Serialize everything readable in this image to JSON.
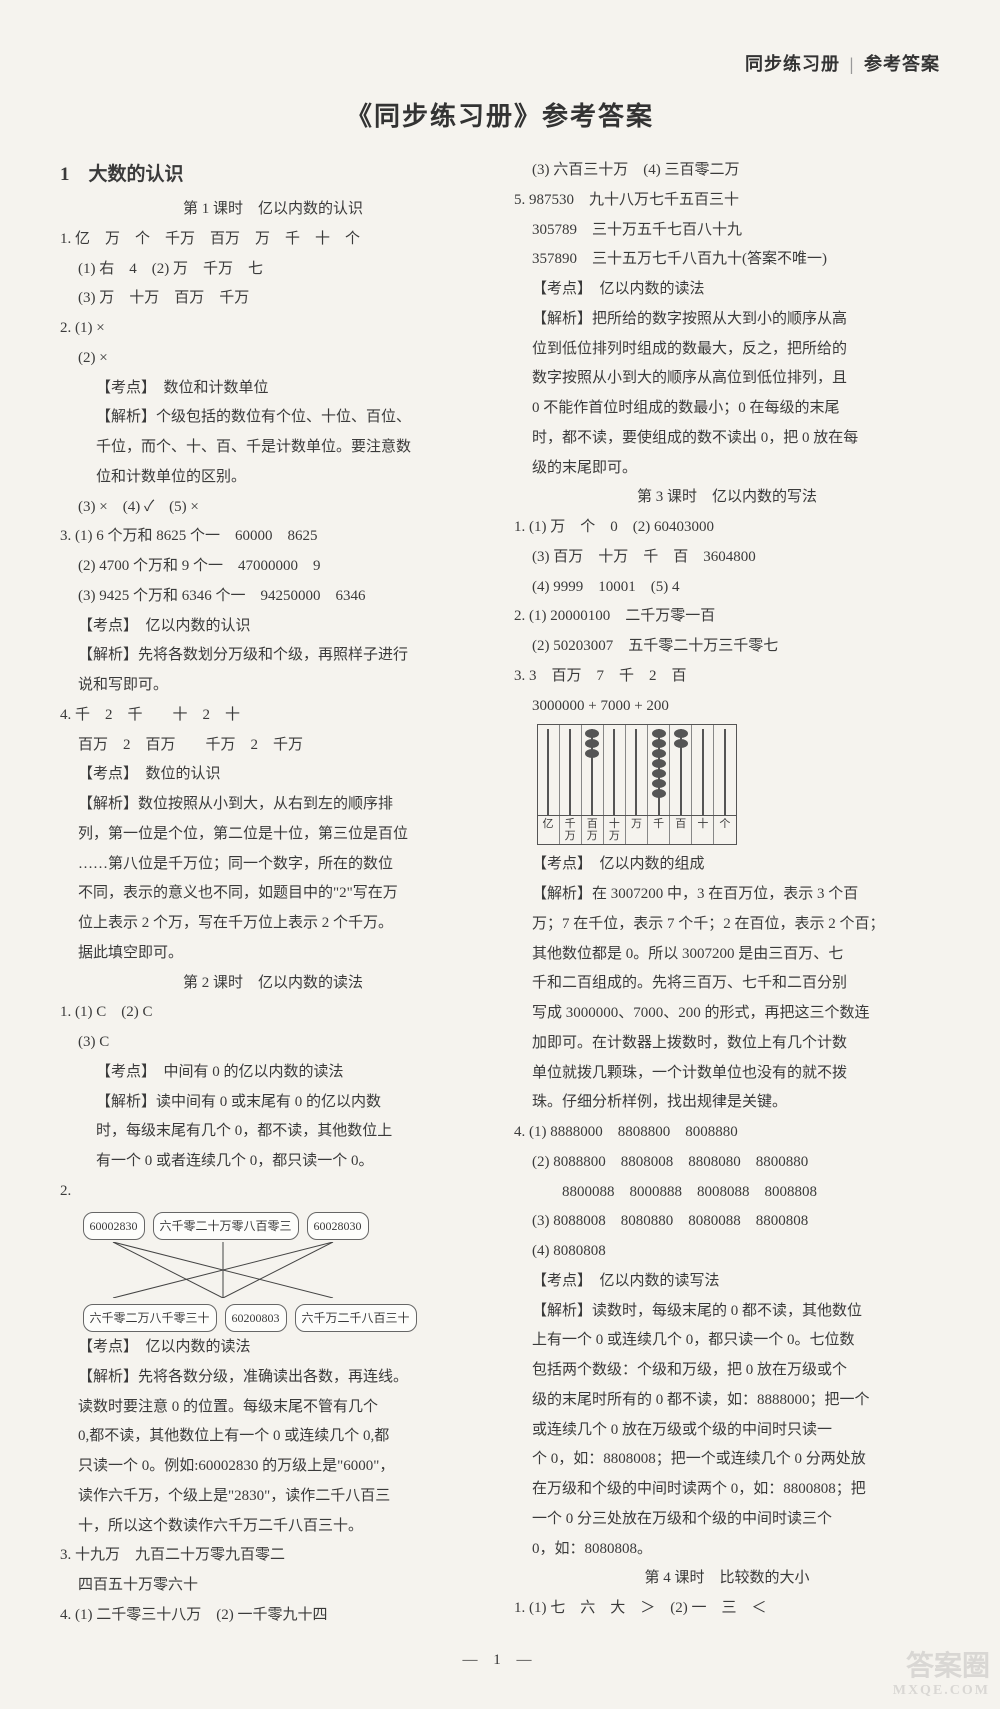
{
  "header": {
    "right_a": "同步练习册",
    "right_sep": "|",
    "right_b": "参考答案",
    "main_title": "《同步练习册》参考答案"
  },
  "left": {
    "chapter_num": "1",
    "chapter_title": "大数的认识",
    "lesson1": "第 1 课时　亿以内数的认识",
    "l1_1": "1. 亿　万　个　千万　百万　万　千　十　个",
    "l1_1a": "(1) 右　4　(2) 万　千万　七",
    "l1_1b": "(3) 万　十万　百万　千万",
    "l1_2": "2. (1) ×",
    "l1_2a": "(2) ×",
    "l1_kao1": "【考点】　数位和计数单位",
    "l1_jie1a": "【解析】个级包括的数位有个位、十位、百位、",
    "l1_jie1b": "千位，而个、十、百、千是计数单位。要注意数",
    "l1_jie1c": "位和计数单位的区别。",
    "l1_2b": "(3) ×　(4) ✓　(5) ×",
    "l1_3a": "3. (1) 6 个万和 8625 个一　60000　8625",
    "l1_3b": "(2) 4700 个万和 9 个一　47000000　9",
    "l1_3c": "(3) 9425 个万和 6346 个一　94250000　6346",
    "l1_kao2": "【考点】　亿以内数的认识",
    "l1_jie2a": "【解析】先将各数划分万级和个级，再照样子进行",
    "l1_jie2b": "说和写即可。",
    "l1_4a": "4. 千　2　千　　十　2　十",
    "l1_4b": "百万　2　百万　　千万　2　千万",
    "l1_kao3": "【考点】　数位的认识",
    "l1_jie3a": "【解析】数位按照从小到大，从右到左的顺序排",
    "l1_jie3b": "列，第一位是个位，第二位是十位，第三位是百位",
    "l1_jie3c": "……第八位是千万位；同一个数字，所在的数位",
    "l1_jie3d": "不同，表示的意义也不同，如题目中的\"2\"写在万",
    "l1_jie3e": "位上表示 2 个万，写在千万位上表示 2 个千万。",
    "l1_jie3f": "据此填空即可。",
    "lesson2": "第 2 课时　亿以内数的读法",
    "l2_1": "1. (1) C　(2) C",
    "l2_1a": "(3) C",
    "l2_kao1": "【考点】　中间有 0 的亿以内数的读法",
    "l2_jie1a": "【解析】读中间有 0 或末尾有 0 的亿以内数",
    "l2_jie1b": "时，每级末尾有几个 0，都不读，其他数位上",
    "l2_jie1c": "有一个 0 或者连续几个 0，都只读一个 0。",
    "l2_2": "2.",
    "box_top": [
      "60002830",
      "六千零二十万零八百零三",
      "60028030"
    ],
    "box_bot": [
      "六千零二万八千零三十",
      "60200803",
      "六千万二千八百三十"
    ],
    "l2_kao2": "【考点】　亿以内数的读法",
    "l2_jie2a": "【解析】先将各数分级，准确读出各数，再连线。",
    "l2_jie2b": "读数时要注意 0 的位置。每级末尾不管有几个",
    "l2_jie2c": "0,都不读，其他数位上有一个 0 或连续几个 0,都",
    "l2_jie2d": "只读一个 0。例如:60002830 的万级上是\"6000\"，",
    "l2_jie2e": "读作六千万，个级上是\"2830\"，读作二千八百三",
    "l2_jie2f": "十，所以这个数读作六千万二千八百三十。",
    "l2_3a": "3. 十九万　九百二十万零九百零二",
    "l2_3b": "四百五十万零六十",
    "l2_4": "4. (1) 二千零三十八万　(2) 一千零九十四"
  },
  "right": {
    "r_top1": "(3) 六百三十万　(4) 三百零二万",
    "r5a": "5. 987530　九十八万七千五百三十",
    "r5b": "305789　三十万五千七百八十九",
    "r5c": "357890　三十五万七千八百九十(答案不唯一)",
    "r5_kao": "【考点】　亿以内数的读法",
    "r5_j1": "【解析】把所给的数字按照从大到小的顺序从高",
    "r5_j2": "位到低位排列时组成的数最大，反之，把所给的",
    "r5_j3": "数字按照从小到大的顺序从高位到低位排列，且",
    "r5_j4": "0 不能作首位时组成的数最小；0 在每级的末尾",
    "r5_j5": "时，都不读，要使组成的数不读出 0，把 0 放在每",
    "r5_j6": "级的末尾即可。",
    "lesson3": "第 3 课时　亿以内数的写法",
    "l3_1a": "1. (1) 万　个　0　(2) 60403000",
    "l3_1b": "(3) 百万　十万　千　百　3604800",
    "l3_1c": "(4) 9999　10001　(5) 4",
    "l3_2a": "2. (1) 20000100　二千万零一百",
    "l3_2b": "(2) 50203007　五千零二十万三千零七",
    "l3_3a": "3. 3　百万　7　千　2　百",
    "l3_3b": "3000000 + 7000 + 200",
    "abacus_beads": [
      0,
      0,
      3,
      0,
      0,
      7,
      2,
      0,
      0
    ],
    "abacus_labels": [
      "亿",
      "千万",
      "百万",
      "十万",
      "万",
      "千",
      "百",
      "十",
      "个"
    ],
    "l3_kao": "【考点】　亿以内数的组成",
    "l3_j1": "【解析】在 3007200 中，3 在百万位，表示 3 个百",
    "l3_j2": "万；7 在千位，表示 7 个千；2 在百位，表示 2 个百；",
    "l3_j3": "其他数位都是 0。所以 3007200 是由三百万、七",
    "l3_j4": "千和二百组成的。先将三百万、七千和二百分别",
    "l3_j5": "写成 3000000、7000、200 的形式，再把这三个数连",
    "l3_j6": "加即可。在计数器上拨数时，数位上有几个计数",
    "l3_j7": "单位就拨几颗珠，一个计数单位也没有的就不拨",
    "l3_j8": "珠。仔细分析样例，找出规律是关键。",
    "l3_4a": "4. (1) 8888000　8808800　8008880",
    "l3_4b": "(2) 8088800　8808008　8808080　8800880",
    "l3_4c": "　　8800088　8000888　8008088　8008808",
    "l3_4d": "(3) 8088008　8080880　8080088　8800808",
    "l3_4e": "(4) 8080808",
    "l3_kao2": "【考点】　亿以内数的读写法",
    "l3_j2a": "【解析】读数时，每级末尾的 0 都不读，其他数位",
    "l3_j2b": "上有一个 0 或连续几个 0，都只读一个 0。七位数",
    "l3_j2c": "包括两个数级：个级和万级，把 0 放在万级或个",
    "l3_j2d": "级的末尾时所有的 0 都不读，如：8888000；把一个",
    "l3_j2e": "或连续几个 0 放在万级或个级的中间时只读一",
    "l3_j2f": "个 0，如：8808008；把一个或连续几个 0 分两处放",
    "l3_j2g": "在万级和个级的中间时读两个 0，如：8800808；把",
    "l3_j2h": "一个 0 分三处放在万级和个级的中间时读三个",
    "l3_j2i": "0，如：8080808。",
    "lesson4": "第 4 课时　比较数的大小",
    "l4_1": "1. (1) 七　六　大　＞　(2) 一　三　＜"
  },
  "page_num": "— 1 —",
  "watermark": {
    "big": "答案圈",
    "small": "MXQE.COM"
  }
}
